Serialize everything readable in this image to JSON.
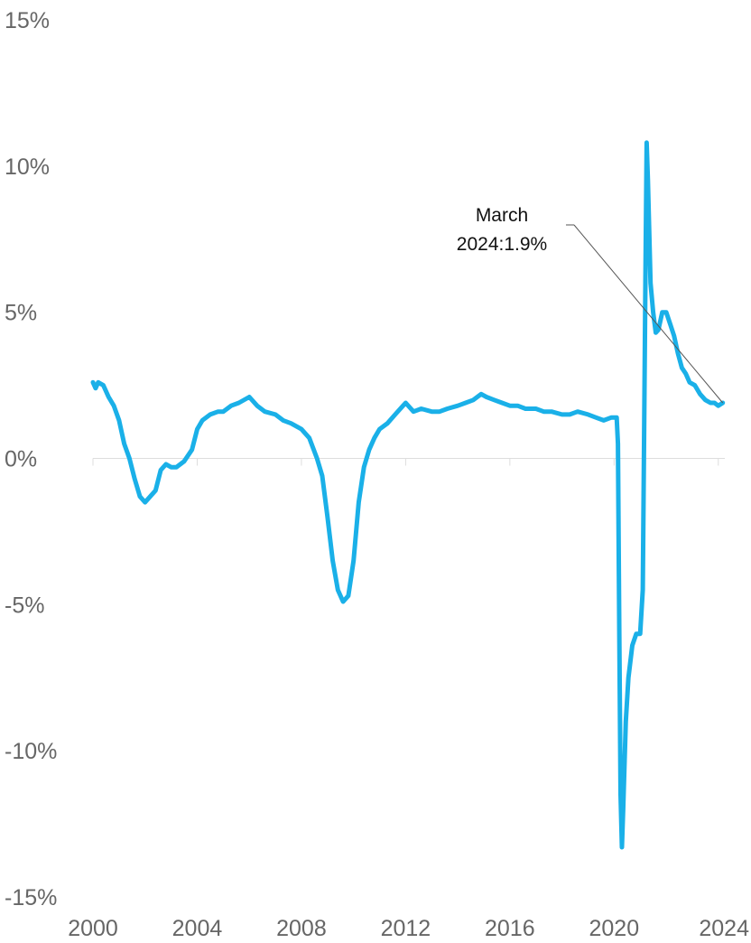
{
  "chart_data": {
    "type": "line",
    "title": "",
    "xlabel": "",
    "ylabel": "",
    "x_range": [
      2000,
      2024.25
    ],
    "ylim": [
      -15,
      15
    ],
    "x_ticks": [
      2000,
      2004,
      2008,
      2012,
      2016,
      2020,
      2024
    ],
    "x_tick_labels": [
      "2000",
      "2004",
      "2008",
      "2012",
      "2016",
      "2020",
      "2024"
    ],
    "y_ticks": [
      15,
      10,
      5,
      0,
      -5,
      -10,
      -15
    ],
    "y_tick_labels": [
      "15%",
      "10%",
      "5%",
      "0%",
      "-5%",
      "-10%",
      "-15%"
    ],
    "grid": false,
    "legend": "none",
    "color": "#1ab0e8",
    "annotation": {
      "line1": "March",
      "line2": "2024:1.9%",
      "x": 2024.17,
      "y": 1.9
    },
    "series": [
      {
        "points": [
          [
            2000.0,
            2.6
          ],
          [
            2000.1,
            2.4
          ],
          [
            2000.2,
            2.6
          ],
          [
            2000.4,
            2.5
          ],
          [
            2000.6,
            2.1
          ],
          [
            2000.8,
            1.8
          ],
          [
            2001.0,
            1.3
          ],
          [
            2001.2,
            0.5
          ],
          [
            2001.4,
            0.0
          ],
          [
            2001.6,
            -0.7
          ],
          [
            2001.8,
            -1.3
          ],
          [
            2002.0,
            -1.5
          ],
          [
            2002.2,
            -1.3
          ],
          [
            2002.4,
            -1.1
          ],
          [
            2002.6,
            -0.4
          ],
          [
            2002.8,
            -0.2
          ],
          [
            2003.0,
            -0.3
          ],
          [
            2003.2,
            -0.3
          ],
          [
            2003.5,
            -0.1
          ],
          [
            2003.8,
            0.3
          ],
          [
            2004.0,
            1.0
          ],
          [
            2004.2,
            1.3
          ],
          [
            2004.5,
            1.5
          ],
          [
            2004.8,
            1.6
          ],
          [
            2005.0,
            1.6
          ],
          [
            2005.3,
            1.8
          ],
          [
            2005.6,
            1.9
          ],
          [
            2006.0,
            2.1
          ],
          [
            2006.3,
            1.8
          ],
          [
            2006.6,
            1.6
          ],
          [
            2007.0,
            1.5
          ],
          [
            2007.3,
            1.3
          ],
          [
            2007.6,
            1.2
          ],
          [
            2008.0,
            1.0
          ],
          [
            2008.3,
            0.7
          ],
          [
            2008.6,
            0.0
          ],
          [
            2008.8,
            -0.6
          ],
          [
            2009.0,
            -2.0
          ],
          [
            2009.2,
            -3.5
          ],
          [
            2009.4,
            -4.5
          ],
          [
            2009.6,
            -4.9
          ],
          [
            2009.8,
            -4.7
          ],
          [
            2010.0,
            -3.5
          ],
          [
            2010.2,
            -1.5
          ],
          [
            2010.4,
            -0.3
          ],
          [
            2010.6,
            0.3
          ],
          [
            2010.8,
            0.7
          ],
          [
            2011.0,
            1.0
          ],
          [
            2011.3,
            1.2
          ],
          [
            2011.6,
            1.5
          ],
          [
            2011.9,
            1.8
          ],
          [
            2012.0,
            1.9
          ],
          [
            2012.3,
            1.6
          ],
          [
            2012.6,
            1.7
          ],
          [
            2013.0,
            1.6
          ],
          [
            2013.3,
            1.6
          ],
          [
            2013.6,
            1.7
          ],
          [
            2014.0,
            1.8
          ],
          [
            2014.3,
            1.9
          ],
          [
            2014.6,
            2.0
          ],
          [
            2014.9,
            2.2
          ],
          [
            2015.1,
            2.1
          ],
          [
            2015.4,
            2.0
          ],
          [
            2015.7,
            1.9
          ],
          [
            2016.0,
            1.8
          ],
          [
            2016.3,
            1.8
          ],
          [
            2016.6,
            1.7
          ],
          [
            2017.0,
            1.7
          ],
          [
            2017.3,
            1.6
          ],
          [
            2017.6,
            1.6
          ],
          [
            2018.0,
            1.5
          ],
          [
            2018.3,
            1.5
          ],
          [
            2018.6,
            1.6
          ],
          [
            2019.0,
            1.5
          ],
          [
            2019.3,
            1.4
          ],
          [
            2019.6,
            1.3
          ],
          [
            2019.9,
            1.4
          ],
          [
            2020.1,
            1.4
          ],
          [
            2020.15,
            0.5
          ],
          [
            2020.2,
            -6.0
          ],
          [
            2020.25,
            -11.5
          ],
          [
            2020.3,
            -13.3
          ],
          [
            2020.35,
            -12.0
          ],
          [
            2020.45,
            -9.0
          ],
          [
            2020.55,
            -7.5
          ],
          [
            2020.7,
            -6.4
          ],
          [
            2020.85,
            -6.0
          ],
          [
            2021.0,
            -6.0
          ],
          [
            2021.1,
            -4.5
          ],
          [
            2021.15,
            0.5
          ],
          [
            2021.2,
            6.0
          ],
          [
            2021.25,
            10.8
          ],
          [
            2021.3,
            9.5
          ],
          [
            2021.4,
            6.0
          ],
          [
            2021.5,
            5.0
          ],
          [
            2021.6,
            4.3
          ],
          [
            2021.7,
            4.4
          ],
          [
            2021.85,
            5.0
          ],
          [
            2022.0,
            5.0
          ],
          [
            2022.15,
            4.6
          ],
          [
            2022.3,
            4.2
          ],
          [
            2022.45,
            3.6
          ],
          [
            2022.6,
            3.1
          ],
          [
            2022.75,
            2.9
          ],
          [
            2022.9,
            2.6
          ],
          [
            2023.1,
            2.5
          ],
          [
            2023.3,
            2.2
          ],
          [
            2023.5,
            2.0
          ],
          [
            2023.7,
            1.9
          ],
          [
            2023.85,
            1.9
          ],
          [
            2024.0,
            1.8
          ],
          [
            2024.17,
            1.9
          ]
        ]
      }
    ]
  }
}
